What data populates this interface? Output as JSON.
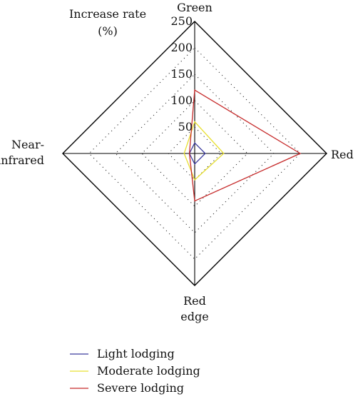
{
  "chart_data": {
    "type": "radar",
    "axis_title": [
      "Increase rate",
      "(%)"
    ],
    "axes": [
      {
        "key": "green",
        "label": [
          "Green"
        ]
      },
      {
        "key": "red",
        "label": [
          "Red"
        ]
      },
      {
        "key": "red_edge",
        "label": [
          "Red",
          "edge"
        ]
      },
      {
        "key": "near_infrared",
        "label": [
          "Near-",
          "infrared"
        ]
      }
    ],
    "r_range": [
      0,
      250
    ],
    "ticks": [
      "50",
      "100",
      "150",
      "200",
      "250"
    ],
    "tick_values": [
      50,
      100,
      150,
      200,
      250
    ],
    "grid": "dotted",
    "legend_position": "bottom",
    "series": [
      {
        "name": "Light lodging",
        "color": "#3b3b9e",
        "values": [
          20,
          20,
          20,
          10
        ]
      },
      {
        "name": "Moderate lodging",
        "color": "#e8e030",
        "values": [
          60,
          55,
          50,
          20
        ]
      },
      {
        "name": "Severe lodging",
        "color": "#c62a2a",
        "values": [
          120,
          200,
          90,
          10
        ]
      }
    ]
  }
}
